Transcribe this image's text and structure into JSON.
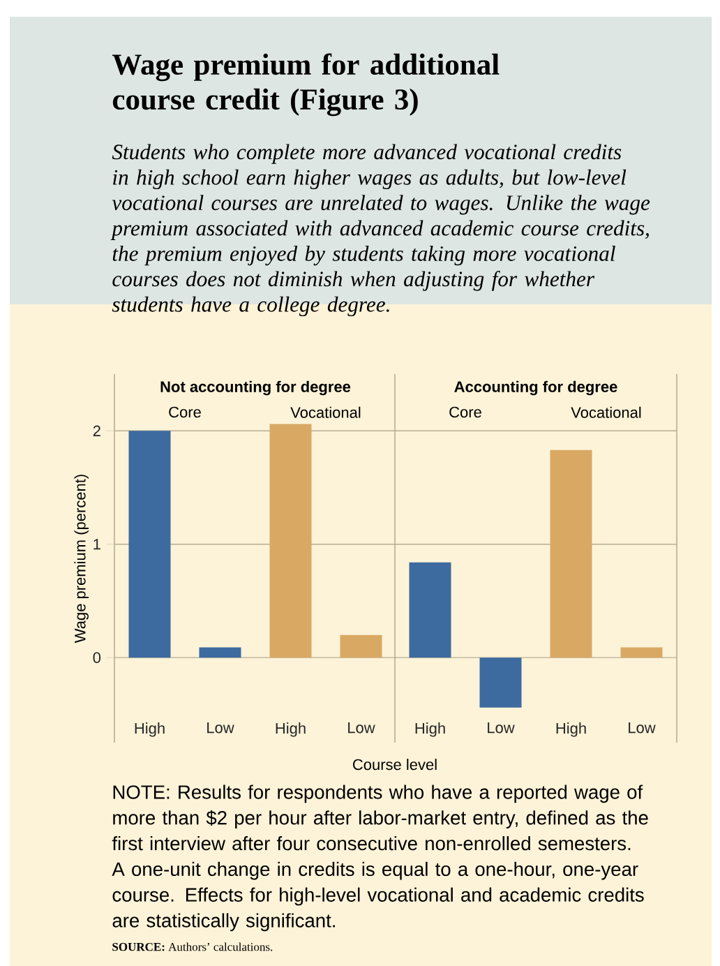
{
  "chart_data": [
    {
      "type": "bar",
      "title": "Not accounting for degree",
      "subtitle": "Students who complete more advanced vocational credits in high school earn higher wages as adults, but low-level vocational courses are unrelated to wages. Unlike the wage premium associated with advanced academic course credits, the premium enjoyed by students taking more vocational courses does not diminish when adjusting for whether students have a college degree.",
      "xlabel": "Course level",
      "ylabel": "Wage premium (percent)",
      "categories": [
        "High",
        "Low",
        "High",
        "Low"
      ],
      "values": [
        2.0,
        0.09,
        2.06,
        0.2
      ],
      "colors": [
        "#3d6a9f",
        "#3d6a9f",
        "#d9a964",
        "#d9a964"
      ],
      "ylim": [
        -0.75,
        2.5
      ],
      "yticks": [
        0,
        1,
        2
      ],
      "grid": "y",
      "annotations": [
        "Core",
        "Vocational",
        "Wage premium for additional course credit (Figure 3)",
        "NOTE: Results for respondents who have a reported wage of more than $2 per hour after labor-market entry, defined as the first interview after four consecutive non-enrolled semesters. A one-unit change in credits is equal to a one-hour, one-year course. Effects for high-level vocational and academic credits are statistically significant.",
        "**SOURCE:** Authors’ calculations."
      ]
    },
    {
      "type": "bar",
      "title": "Accounting for degree",
      "categories": [
        "High",
        "Low",
        "High",
        "Low"
      ],
      "values": [
        0.84,
        -0.44,
        1.83,
        0.09
      ],
      "colors": [
        "#3d6a9f",
        "#3d6a9f",
        "#d9a964",
        "#d9a964"
      ],
      "ylim": [
        -0.75,
        2.5
      ],
      "yticks": [
        0,
        1,
        2
      ],
      "grid": "y",
      "tick_labels": "x",
      "annotations": [
        "Core",
        "Vocational"
      ]
    }
  ]
}
